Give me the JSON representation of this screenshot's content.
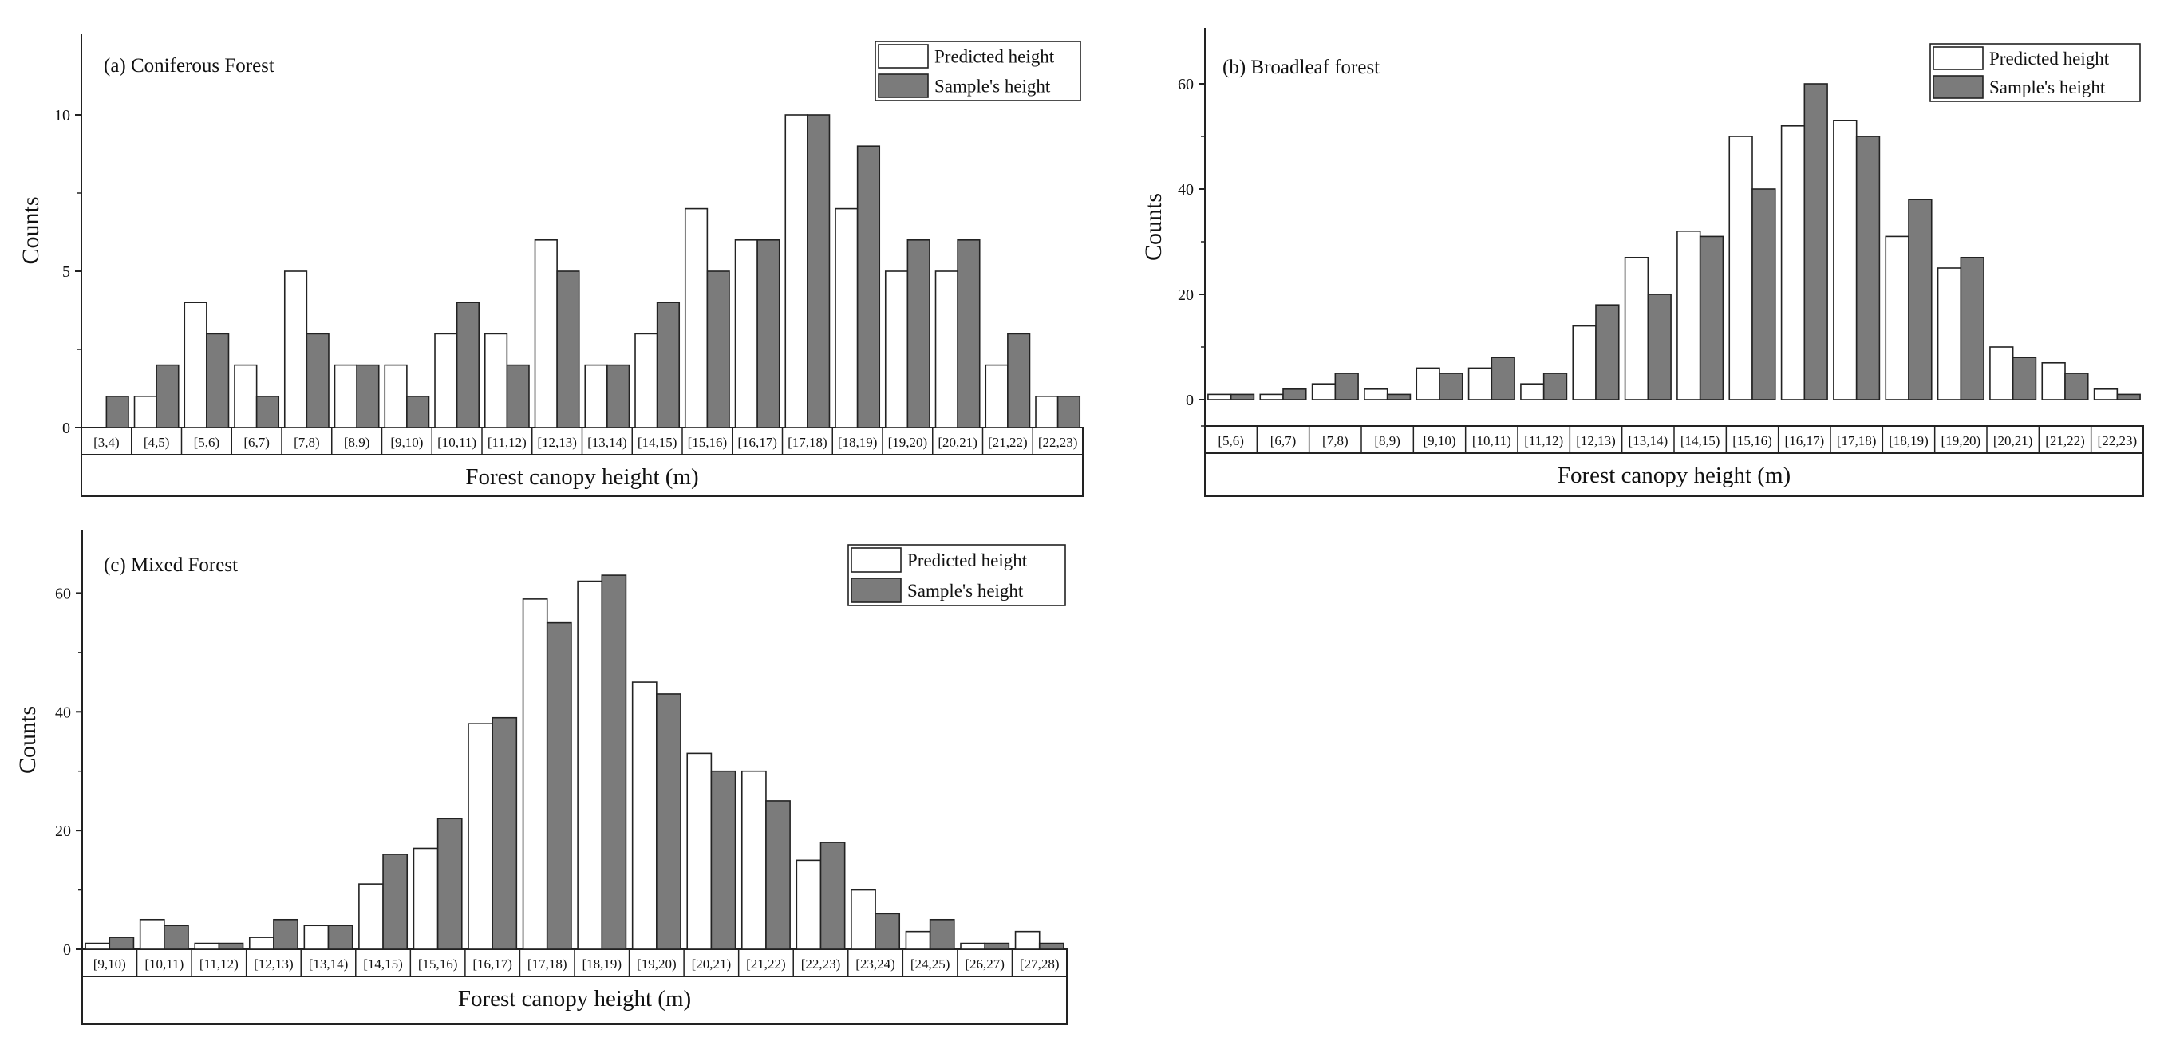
{
  "figure": {
    "legend_labels": [
      "Predicted height",
      "Sample's height"
    ],
    "colors": {
      "predicted": "#ffffff",
      "sample": "#7b7b7b",
      "stroke": "#222222"
    }
  },
  "chart_data": [
    {
      "type": "bar",
      "title": "(a) Coniferous Forest",
      "xlabel": "Forest canopy height (m)",
      "ylabel": "Counts",
      "ylim": [
        0,
        12.5
      ],
      "yticks": [
        0,
        5,
        10
      ],
      "legend_position": "top-right",
      "categories": [
        "[3,4)",
        "[4,5)",
        "[5,6)",
        "[6,7)",
        "[7,8)",
        "[8,9)",
        "[9,10)",
        "[10,11)",
        "[11,12)",
        "[12,13)",
        "[13,14)",
        "[14,15)",
        "[15,16)",
        "[16,17)",
        "[17,18)",
        "[18,19)",
        "[19,20)",
        "[20,21)",
        "[21,22)",
        "[22,23)"
      ],
      "series": [
        {
          "name": "Predicted height",
          "values": [
            0,
            1,
            4,
            2,
            5,
            2,
            2,
            3,
            3,
            6,
            2,
            3,
            7,
            6,
            10,
            7,
            5,
            5,
            2,
            1
          ]
        },
        {
          "name": "Sample's height",
          "values": [
            1,
            2,
            3,
            1,
            3,
            2,
            1,
            4,
            2,
            5,
            2,
            4,
            5,
            6,
            10,
            9,
            6,
            6,
            3,
            1
          ]
        }
      ]
    },
    {
      "type": "bar",
      "title": "(b) Broadleaf forest",
      "xlabel": "Forest canopy height (m)",
      "ylabel": "Counts",
      "ylim": [
        -5,
        70
      ],
      "yticks": [
        0,
        20,
        40,
        60
      ],
      "legend_position": "top-right",
      "categories": [
        "[5,6)",
        "[6,7)",
        "[7,8)",
        "[8,9)",
        "[9,10)",
        "[10,11)",
        "[11,12)",
        "[12,13)",
        "[13,14)",
        "[14,15)",
        "[15,16)",
        "[16,17)",
        "[17,18)",
        "[18,19)",
        "[19,20)",
        "[20,21)",
        "[21,22)",
        "[22,23)"
      ],
      "series": [
        {
          "name": "Predicted height",
          "values": [
            1,
            1,
            3,
            2,
            6,
            6,
            3,
            14,
            27,
            32,
            50,
            52,
            53,
            31,
            25,
            10,
            7,
            2
          ]
        },
        {
          "name": "Sample's height",
          "values": [
            1,
            2,
            5,
            1,
            5,
            8,
            5,
            18,
            20,
            31,
            40,
            60,
            50,
            38,
            27,
            8,
            5,
            1
          ]
        }
      ]
    },
    {
      "type": "bar",
      "title": "(c) Mixed Forest",
      "xlabel": "Forest canopy height (m)",
      "ylabel": "Counts",
      "ylim": [
        0,
        70
      ],
      "yticks": [
        0,
        20,
        40,
        60
      ],
      "legend_position": "top-right",
      "categories": [
        "[9,10)",
        "[10,11)",
        "[11,12)",
        "[12,13)",
        "[13,14)",
        "[14,15)",
        "[15,16)",
        "[16,17)",
        "[17,18)",
        "[18,19)",
        "[19,20)",
        "[20,21)",
        "[21,22)",
        "[22,23)",
        "[23,24)",
        "[24,25)",
        "[26,27)",
        "[27,28)"
      ],
      "series": [
        {
          "name": "Predicted height",
          "values": [
            1,
            5,
            1,
            2,
            4,
            11,
            17,
            38,
            59,
            62,
            45,
            33,
            30,
            15,
            10,
            3,
            1,
            3
          ]
        },
        {
          "name": "Sample's height",
          "values": [
            2,
            4,
            1,
            5,
            4,
            16,
            22,
            39,
            55,
            63,
            43,
            30,
            25,
            18,
            6,
            5,
            1,
            1
          ]
        }
      ]
    }
  ]
}
